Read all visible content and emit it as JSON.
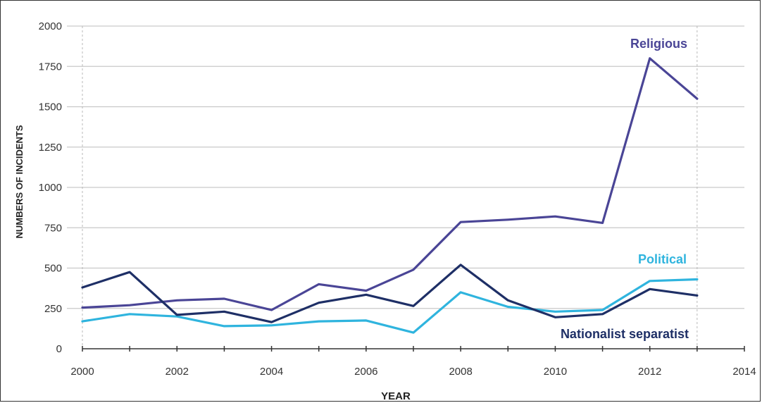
{
  "chart_data": {
    "type": "line",
    "title": "",
    "xlabel": "YEAR",
    "ylabel": "NUMBERS OF INCIDENTS",
    "x": [
      2000,
      2001,
      2002,
      2003,
      2004,
      2005,
      2006,
      2007,
      2008,
      2009,
      2010,
      2011,
      2012,
      2013
    ],
    "xlim": [
      2000,
      2014
    ],
    "ylim": [
      0,
      2000
    ],
    "x_ticks": [
      2000,
      2002,
      2004,
      2006,
      2008,
      2010,
      2012,
      2014
    ],
    "y_ticks": [
      0,
      250,
      500,
      750,
      1000,
      1250,
      1500,
      1750,
      2000
    ],
    "grid": true,
    "legend": "labels placed next to the series lines",
    "series": [
      {
        "name": "Religious",
        "color": "#4a4596",
        "values": [
          255,
          270,
          300,
          310,
          240,
          400,
          360,
          490,
          785,
          800,
          820,
          780,
          1800,
          1550
        ]
      },
      {
        "name": "Political",
        "color": "#2fb4de",
        "values": [
          170,
          215,
          200,
          140,
          145,
          170,
          175,
          100,
          350,
          260,
          230,
          240,
          420,
          430
        ]
      },
      {
        "name": "Nationalist separatist",
        "color": "#1e2f66",
        "values": [
          380,
          475,
          210,
          230,
          165,
          285,
          335,
          265,
          520,
          300,
          195,
          215,
          370,
          330
        ]
      }
    ]
  }
}
